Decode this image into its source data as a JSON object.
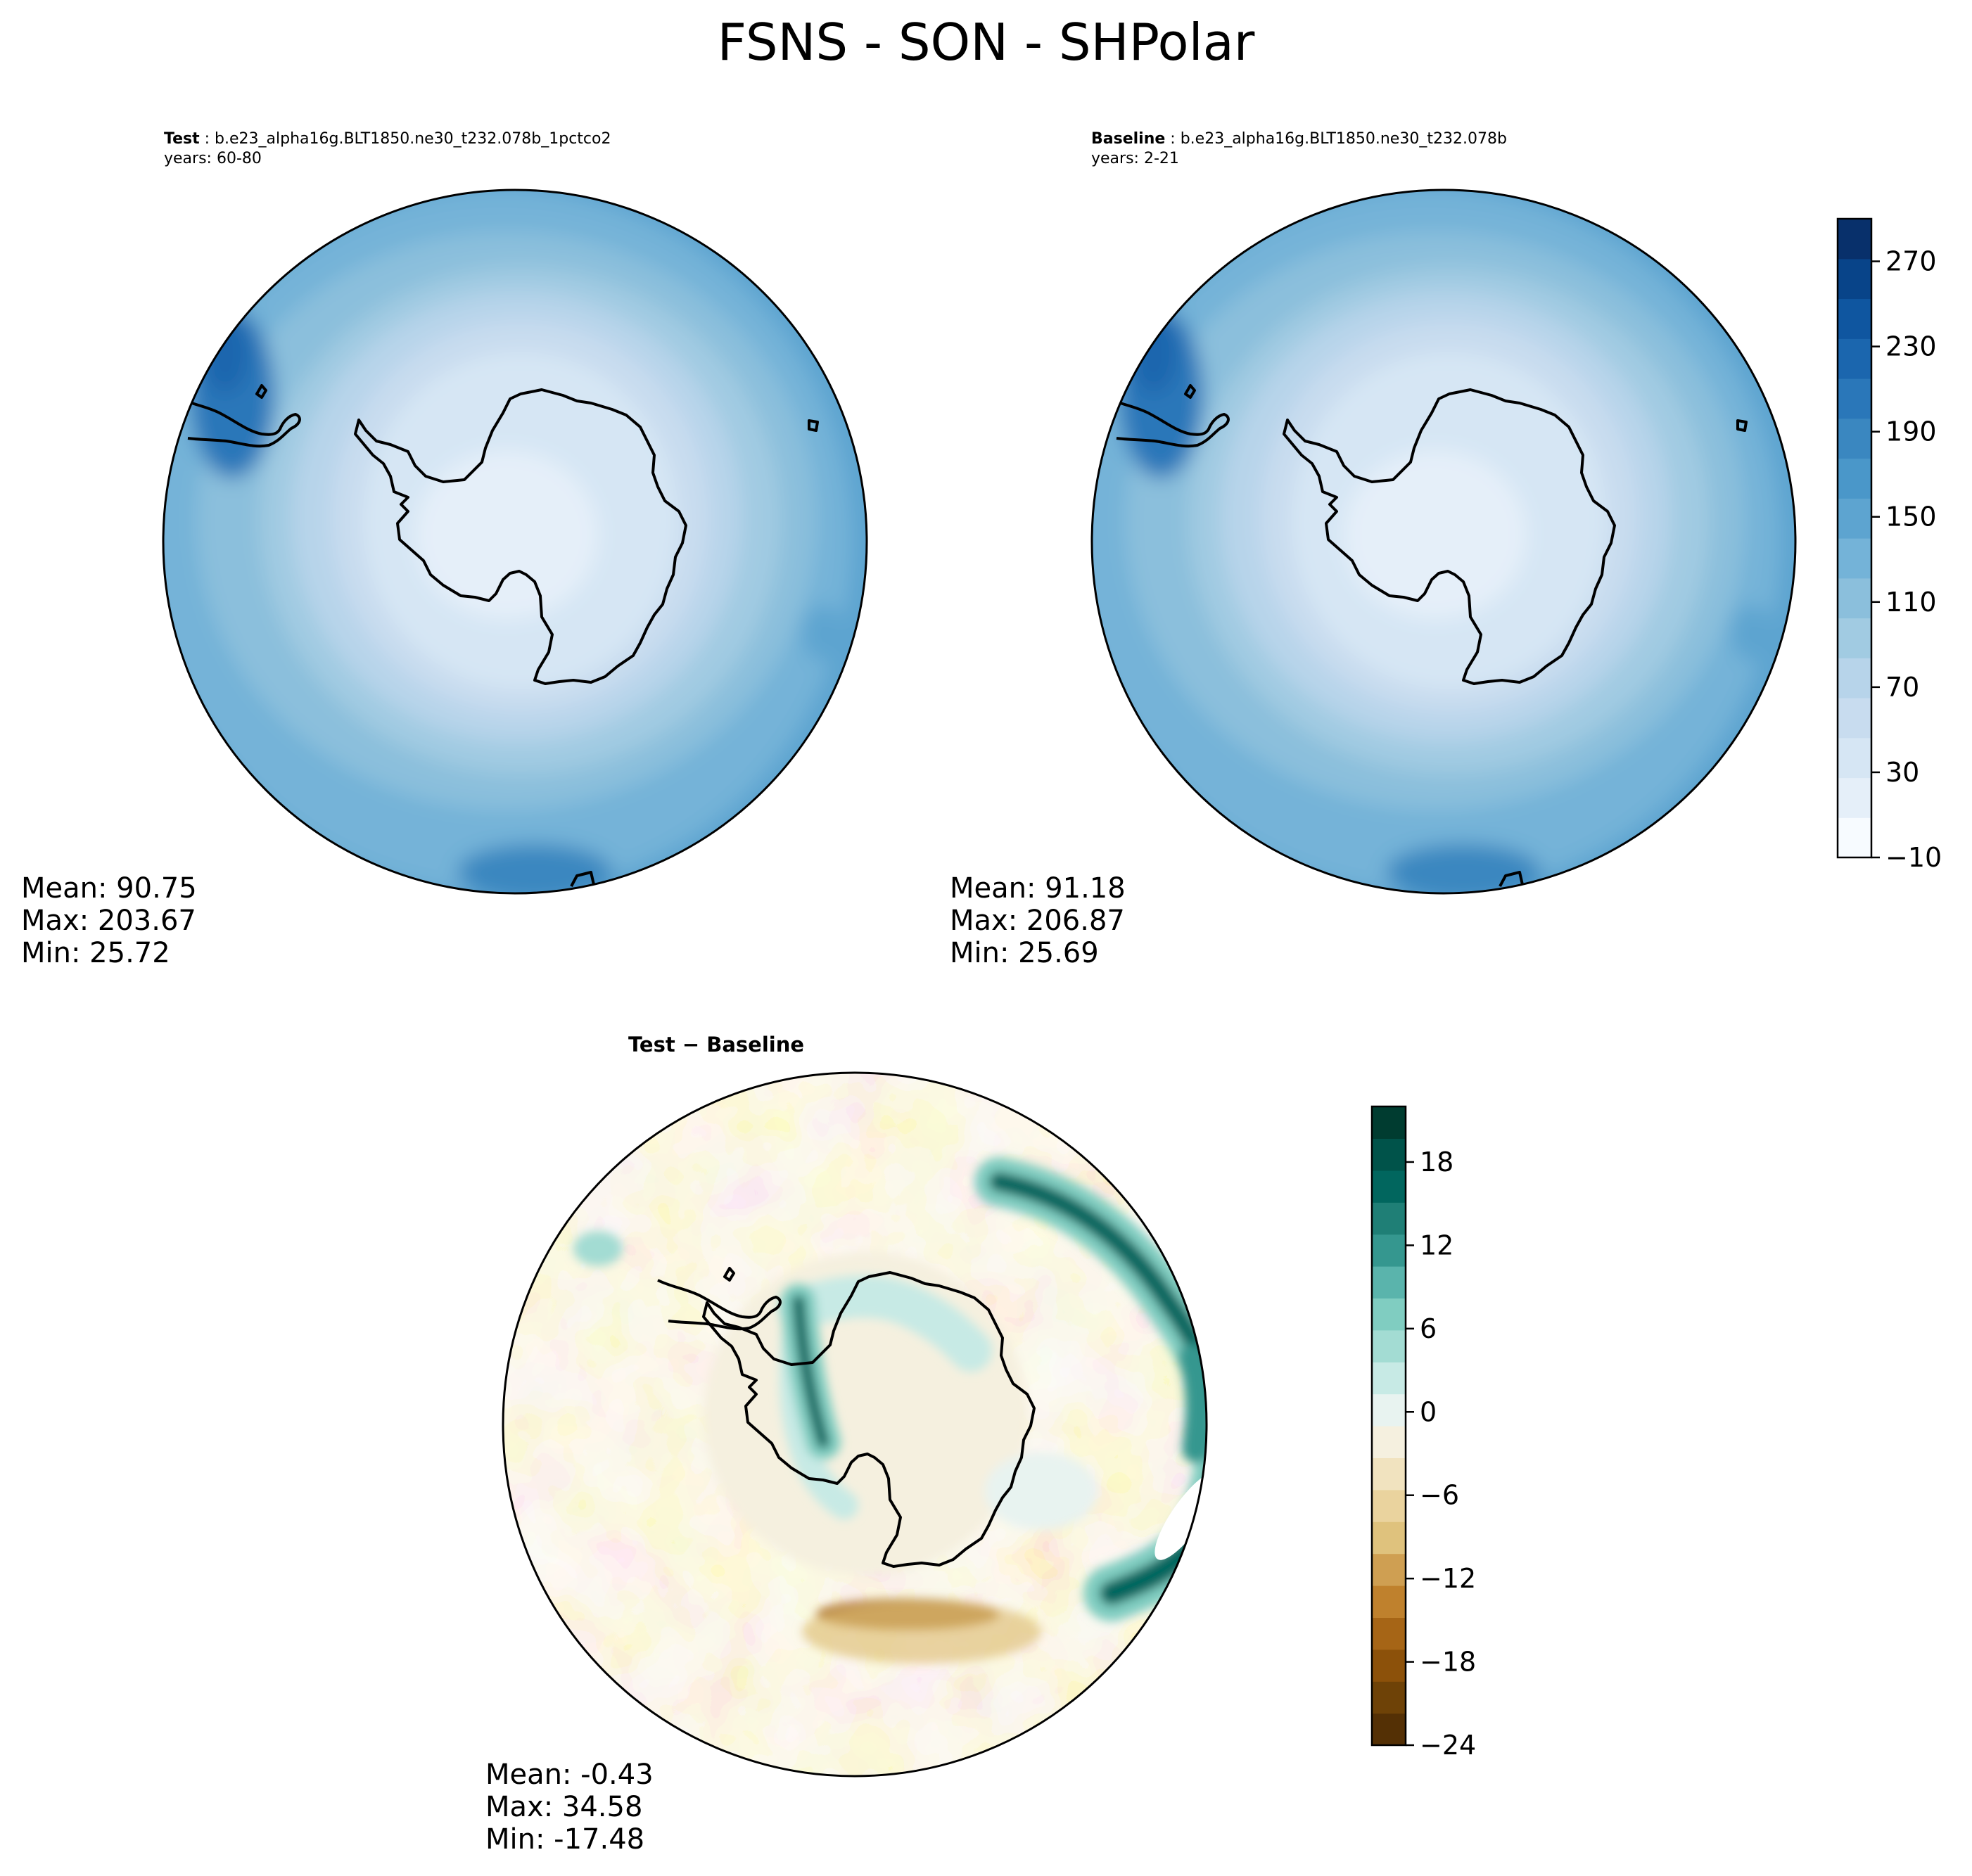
{
  "title": "FSNS - SON - SHPolar",
  "test_panel": {
    "label": "Test",
    "case": "b.e23_alpha16g.BLT1850.ne30_t232.078b_1pctco2",
    "years": "years: 60-80",
    "mean": "Mean: 90.75",
    "max": "Max: 203.67",
    "min": "Min: 25.72"
  },
  "baseline_panel": {
    "label": "Baseline",
    "case": "b.e23_alpha16g.BLT1850.ne30_t232.078b",
    "years": "years: 2-21",
    "mean": "Mean: 91.18",
    "max": "Max: 206.87",
    "min": "Min: 25.69"
  },
  "diff_panel": {
    "title": "Test − Baseline",
    "mean": "Mean: -0.43",
    "max": "Max: 34.58",
    "min": "Min: -17.48"
  },
  "colors": {
    "blues": [
      "#f7fbff",
      "#e5eff9",
      "#d6e6f4",
      "#c8dcef",
      "#b7d4ea",
      "#a1cbe2",
      "#8bbfdc",
      "#74b3d8",
      "#5da4d0",
      "#4a97c9",
      "#3a87c0",
      "#2a77b9",
      "#1b66ae",
      "#0f56a0",
      "#084489",
      "#08306b"
    ],
    "brbg": [
      "#543005",
      "#6e4207",
      "#8c510a",
      "#a66516",
      "#bf812d",
      "#cf9f52",
      "#dfc27d",
      "#ead39e",
      "#f1e3bf",
      "#f5f0df",
      "#e8f3f0",
      "#c7eae5",
      "#a3dcd3",
      "#80cdc1",
      "#5ab4ac",
      "#35978f",
      "#1f7f76",
      "#01665e",
      "#00534a",
      "#003c30"
    ]
  },
  "chart_data": [
    {
      "type": "heatmap",
      "panel": "test",
      "variable": "FSNS",
      "season": "SON",
      "region": "SHPolar",
      "colorbar": {
        "min": -10,
        "max": 290,
        "ticks": [
          -10,
          30,
          70,
          110,
          150,
          190,
          230,
          270
        ]
      },
      "stats": {
        "mean": 90.75,
        "max": 203.67,
        "min": 25.72
      }
    },
    {
      "type": "heatmap",
      "panel": "baseline",
      "variable": "FSNS",
      "season": "SON",
      "region": "SHPolar",
      "colorbar": {
        "min": -10,
        "max": 290,
        "ticks": [
          -10,
          30,
          70,
          110,
          150,
          190,
          230,
          270
        ]
      },
      "stats": {
        "mean": 91.18,
        "max": 206.87,
        "min": 25.69
      }
    },
    {
      "type": "heatmap",
      "panel": "difference",
      "colorbar": {
        "min": -24,
        "max": 22,
        "ticks": [
          -24,
          -18,
          -12,
          -6,
          0,
          6,
          12,
          18
        ]
      },
      "stats": {
        "mean": -0.43,
        "max": 34.58,
        "min": -17.48
      }
    }
  ]
}
